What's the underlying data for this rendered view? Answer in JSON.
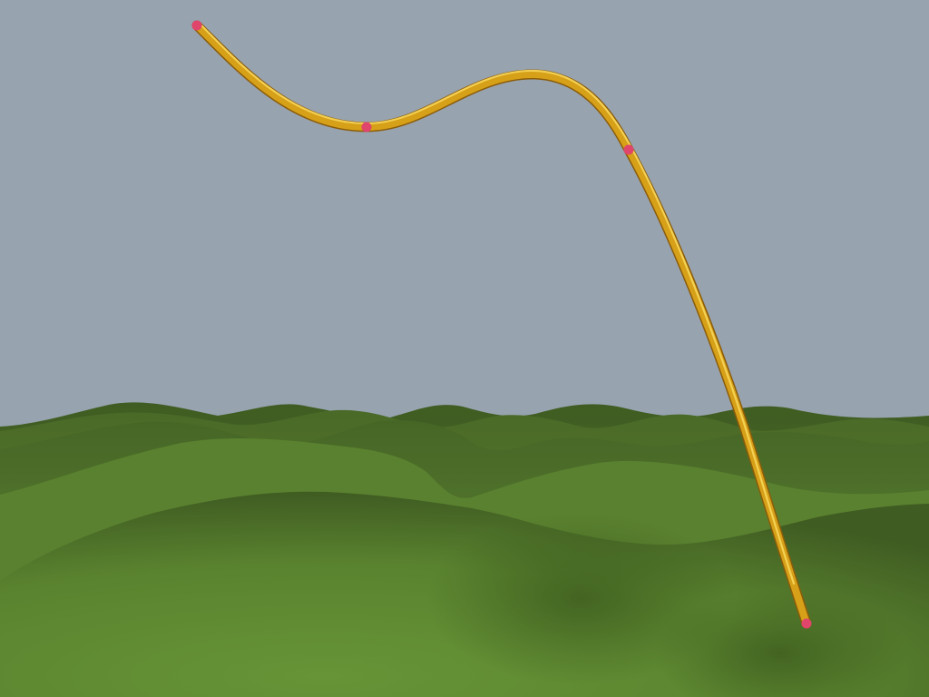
{
  "scene": {
    "sky_color": "#98a3b0",
    "terrain_colors": [
      "#587a30",
      "#54742d",
      "#4f6e2a",
      "#4a6a27",
      "#5d8733"
    ],
    "tube_color": "#d6a018",
    "tube_highlight_color": "#f7d65a",
    "tube_shadow_color": "#8a5c0a",
    "control_point_color": "#e0456b",
    "control_point_count": 4
  }
}
